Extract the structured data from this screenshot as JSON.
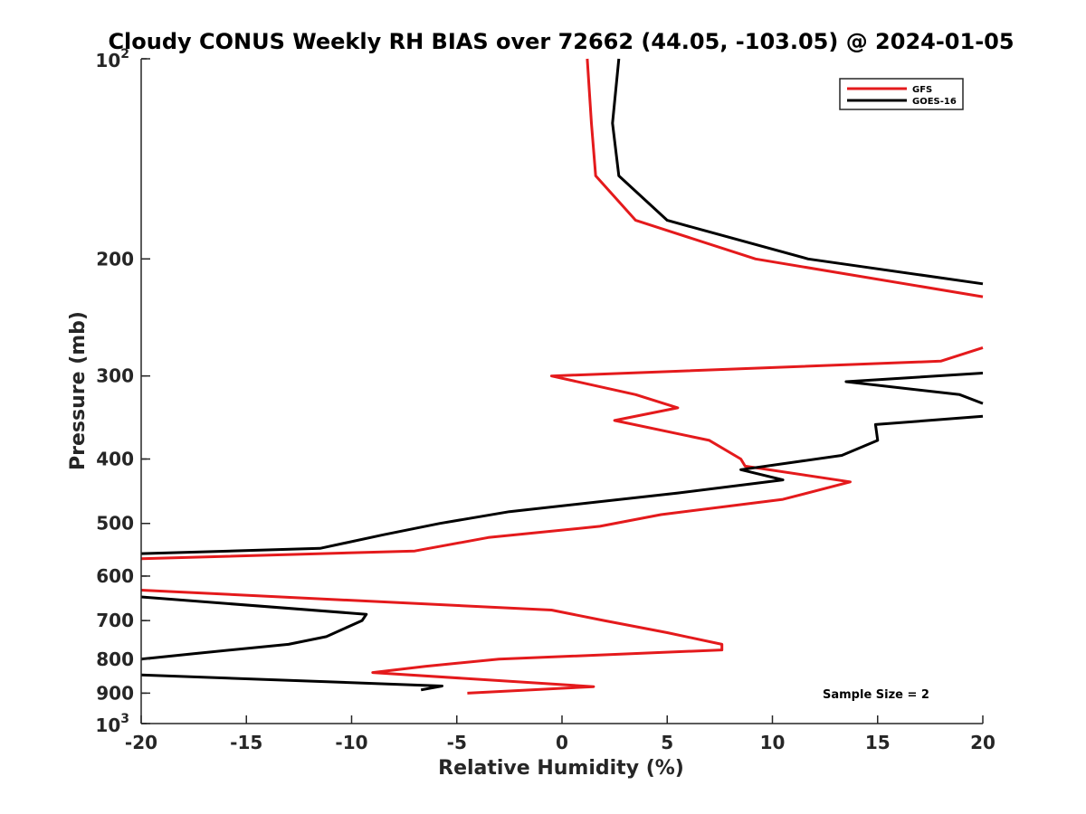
{
  "chart_data": {
    "type": "line",
    "title": "Cloudy CONUS Weekly RH BIAS over 72662 (44.05, -103.05) @ 2024-01-05",
    "xlabel": "Relative Humidity (%)",
    "ylabel": "Pressure (mb)",
    "xlim": [
      -20,
      20
    ],
    "ylim": [
      100,
      1000
    ],
    "yscale": "log",
    "y_reversed": true,
    "x_ticks": [
      -20,
      -15,
      -10,
      -5,
      0,
      5,
      10,
      15,
      20
    ],
    "x_tick_labels": [
      "-20",
      "-15",
      "-10",
      "-5",
      "0",
      "5",
      "10",
      "15",
      "20"
    ],
    "y_ticks": [
      200,
      300,
      400,
      500,
      600,
      700,
      800,
      900
    ],
    "y_tick_labels": [
      "200",
      "300",
      "400",
      "500",
      "600",
      "700",
      "800",
      "900"
    ],
    "y_ends": {
      "top": {
        "base": "10",
        "exp": "2"
      },
      "bottom": {
        "base": "10",
        "exp": "3"
      }
    },
    "grid": false,
    "legend_position": "top-right",
    "annotation": "Sample Size = 2",
    "series": [
      {
        "name": "GFS",
        "color": "#e41a1c",
        "points": [
          [
            1.2,
            100
          ],
          [
            1.4,
            125
          ],
          [
            1.6,
            150
          ],
          [
            3.5,
            175
          ],
          [
            9.2,
            200
          ],
          [
            20,
            228
          ],
          [
            null,
            null
          ],
          [
            20,
            272
          ],
          [
            18,
            285
          ],
          [
            -0.5,
            300
          ],
          [
            3.5,
            320
          ],
          [
            5.5,
            335
          ],
          [
            2.5,
            350
          ],
          [
            7,
            375
          ],
          [
            8.5,
            400
          ],
          [
            8.7,
            410
          ],
          [
            13.7,
            433
          ],
          [
            10.5,
            460
          ],
          [
            4.7,
            485
          ],
          [
            1.8,
            505
          ],
          [
            -3.5,
            525
          ],
          [
            -7,
            550
          ],
          [
            -20,
            565
          ],
          [
            null,
            null
          ],
          [
            -20,
            630
          ],
          [
            -0.5,
            675
          ],
          [
            2,
            700
          ],
          [
            5,
            730
          ],
          [
            7.6,
            760
          ],
          [
            7.6,
            775
          ],
          [
            -3,
            800
          ],
          [
            -6.5,
            820
          ],
          [
            -9,
            838
          ],
          [
            1.5,
            880
          ],
          [
            -4.5,
            900
          ]
        ]
      },
      {
        "name": "GOES-16",
        "color": "#000000",
        "points": [
          [
            2.7,
            100
          ],
          [
            2.4,
            125
          ],
          [
            2.7,
            150
          ],
          [
            5,
            175
          ],
          [
            11.7,
            200
          ],
          [
            20,
            218
          ],
          [
            null,
            null
          ],
          [
            20,
            297
          ],
          [
            13.5,
            306
          ],
          [
            18.9,
            320
          ],
          [
            20,
            330
          ],
          [
            null,
            null
          ],
          [
            20,
            345
          ],
          [
            14.9,
            355
          ],
          [
            15,
            375
          ],
          [
            13.3,
            395
          ],
          [
            8.5,
            415
          ],
          [
            10.5,
            430
          ],
          [
            5.5,
            450
          ],
          [
            -2.5,
            480
          ],
          [
            -5.8,
            500
          ],
          [
            -8.5,
            520
          ],
          [
            -11.5,
            545
          ],
          [
            -20,
            555
          ],
          [
            null,
            null
          ],
          [
            -20,
            645
          ],
          [
            -9.3,
            685
          ],
          [
            -9.5,
            700
          ],
          [
            -11.2,
            740
          ],
          [
            -13,
            760
          ],
          [
            -17.5,
            785
          ],
          [
            -20,
            800
          ],
          [
            null,
            null
          ],
          [
            -20,
            845
          ],
          [
            -5.7,
            878
          ],
          [
            -6.7,
            890
          ]
        ]
      }
    ]
  }
}
